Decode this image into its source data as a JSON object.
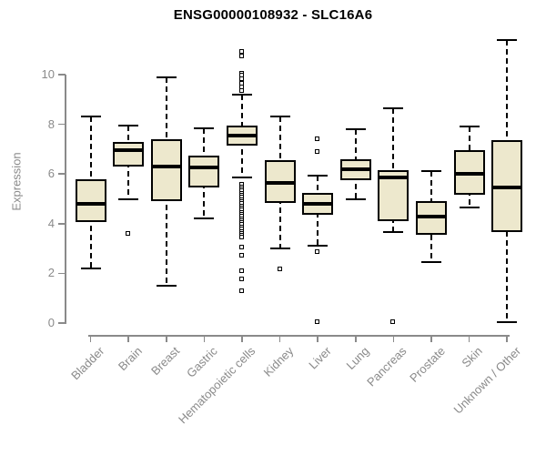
{
  "chart_data": {
    "type": "boxplot",
    "title": "ENSG00000108932 - SLC16A6",
    "xlabel": "",
    "ylabel": "Expression",
    "ylim": [
      0,
      11.6
    ],
    "yticks": [
      0,
      2,
      4,
      6,
      8,
      10
    ],
    "grid": "off",
    "categories": [
      "Bladder",
      "Brain",
      "Breast",
      "Gastric",
      "Hematopoietic cells",
      "Kidney",
      "Liver",
      "Lung",
      "Pancreas",
      "Prostate",
      "Skin",
      "Unknown / Other"
    ],
    "series": [
      {
        "name": "Bladder",
        "whisker_low": 2.2,
        "q1": 4.05,
        "median": 4.8,
        "q3": 5.8,
        "whisker_high": 8.3,
        "outliers": []
      },
      {
        "name": "Brain",
        "whisker_low": 5.0,
        "q1": 6.3,
        "median": 6.95,
        "q3": 7.3,
        "whisker_high": 7.95,
        "outliers": [
          3.6
        ]
      },
      {
        "name": "Breast",
        "whisker_low": 1.5,
        "q1": 4.9,
        "median": 6.3,
        "q3": 7.4,
        "whisker_high": 9.9,
        "outliers": []
      },
      {
        "name": "Gastric",
        "whisker_low": 4.2,
        "q1": 5.45,
        "median": 6.25,
        "q3": 6.75,
        "whisker_high": 7.85,
        "outliers": []
      },
      {
        "name": "Hematopoietic cells",
        "whisker_low": 5.85,
        "q1": 7.15,
        "median": 7.55,
        "q3": 7.95,
        "whisker_high": 9.2,
        "outliers": [
          10.9,
          10.75,
          10.05,
          9.95,
          9.8,
          9.65,
          9.5,
          9.35,
          5.55,
          5.47,
          5.38,
          5.3,
          5.21,
          5.13,
          5.04,
          4.96,
          4.87,
          4.79,
          4.7,
          4.62,
          4.53,
          4.45,
          4.36,
          4.28,
          4.19,
          4.11,
          4.02,
          3.94,
          3.85,
          3.77,
          3.68,
          3.6,
          3.51,
          3.43,
          3.05,
          2.7,
          2.1,
          1.75,
          1.3
        ]
      },
      {
        "name": "Kidney",
        "whisker_low": 3.0,
        "q1": 4.85,
        "median": 5.65,
        "q3": 6.55,
        "whisker_high": 8.3,
        "outliers": [
          2.15
        ]
      },
      {
        "name": "Liver",
        "whisker_low": 3.1,
        "q1": 4.35,
        "median": 4.8,
        "q3": 5.25,
        "whisker_high": 5.95,
        "outliers": [
          7.4,
          6.9,
          2.85,
          0.03
        ]
      },
      {
        "name": "Lung",
        "whisker_low": 5.0,
        "q1": 5.75,
        "median": 6.2,
        "q3": 6.6,
        "whisker_high": 7.8,
        "outliers": []
      },
      {
        "name": "Pancreas",
        "whisker_low": 3.65,
        "q1": 4.1,
        "median": 5.85,
        "q3": 6.15,
        "whisker_high": 8.65,
        "outliers": [
          0.03
        ]
      },
      {
        "name": "Prostate",
        "whisker_low": 2.45,
        "q1": 3.55,
        "median": 4.3,
        "q3": 4.9,
        "whisker_high": 6.1,
        "outliers": []
      },
      {
        "name": "Skin",
        "whisker_low": 4.65,
        "q1": 5.15,
        "median": 6.0,
        "q3": 6.95,
        "whisker_high": 7.9,
        "outliers": []
      },
      {
        "name": "Unknown / Other",
        "whisker_low": 0.02,
        "q1": 3.65,
        "median": 5.45,
        "q3": 7.35,
        "whisker_high": 11.4,
        "outliers": []
      }
    ],
    "colors": {
      "box_fill": "#EDE8CD",
      "box_border": "#000000",
      "median": "#000000",
      "axis": "#8A8A8A",
      "tick_labels": "#8A8A8A",
      "title": "#000000",
      "background": "#FFFFFF"
    }
  }
}
